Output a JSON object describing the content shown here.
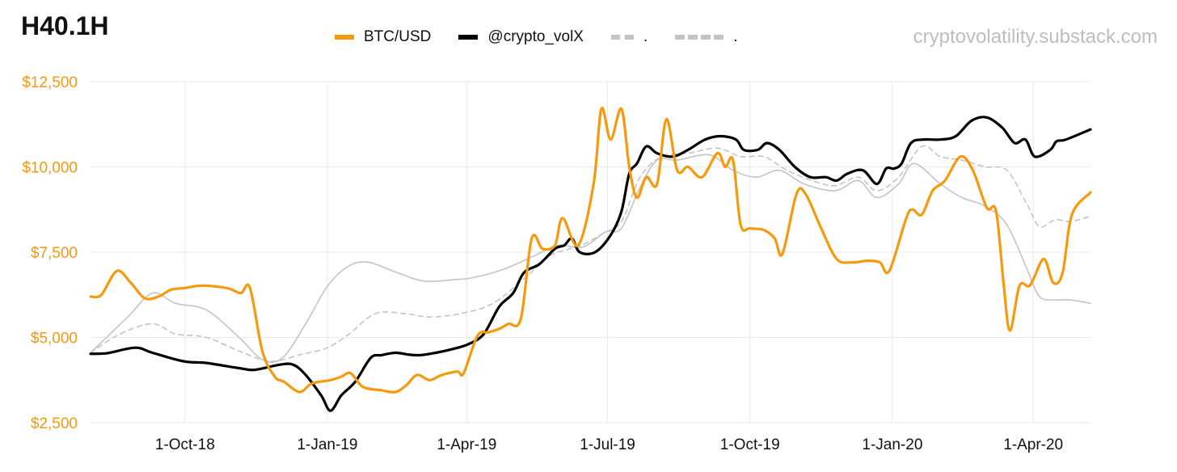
{
  "title": "H40.1H",
  "source": "cryptovolatility.substack.com",
  "colors": {
    "btc": "#F7990D",
    "vol": "#000000",
    "grey": "#c4c4c4",
    "grid": "#e8e8e8",
    "tick": "#F7990D"
  },
  "chart_data": {
    "type": "line",
    "title": "H40.1H",
    "xlabel": "",
    "ylabel": "",
    "ylim": [
      2500,
      12500
    ],
    "xlim": [
      "2018-08-01",
      "2020-05-08"
    ],
    "yticks": [
      2500,
      5000,
      7500,
      10000,
      12500
    ],
    "ytick_labels": [
      "$2,500",
      "$5,000",
      "$7,500",
      "$10,000",
      "$12,500"
    ],
    "xticks": [
      "2018-10-01",
      "2019-01-01",
      "2019-04-01",
      "2019-07-01",
      "2019-10-01",
      "2020-01-01",
      "2020-04-01"
    ],
    "xtick_labels": [
      "1-Oct-18",
      "1-Jan-19",
      "1-Apr-19",
      "1-Jul-19",
      "1-Oct-19",
      "1-Jan-20",
      "1-Apr-20"
    ],
    "grid": true,
    "legend_position": "top",
    "series": [
      {
        "name": "BTC/USD",
        "style": "solid",
        "color": "#F7990D",
        "points": [
          [
            "2018-08-01",
            6200
          ],
          [
            "2018-08-08",
            6250
          ],
          [
            "2018-08-18",
            6950
          ],
          [
            "2018-08-27",
            6600
          ],
          [
            "2018-09-05",
            6150
          ],
          [
            "2018-09-14",
            6200
          ],
          [
            "2018-09-22",
            6400
          ],
          [
            "2018-10-01",
            6450
          ],
          [
            "2018-10-12",
            6520
          ],
          [
            "2018-10-28",
            6450
          ],
          [
            "2018-11-06",
            6300
          ],
          [
            "2018-11-12",
            6450
          ],
          [
            "2018-11-20",
            4600
          ],
          [
            "2018-11-28",
            3850
          ],
          [
            "2018-12-04",
            3700
          ],
          [
            "2018-12-14",
            3400
          ],
          [
            "2018-12-22",
            3650
          ],
          [
            "2019-01-03",
            3750
          ],
          [
            "2019-01-10",
            3850
          ],
          [
            "2019-01-16",
            3950
          ],
          [
            "2019-01-24",
            3550
          ],
          [
            "2019-02-05",
            3450
          ],
          [
            "2019-02-14",
            3400
          ],
          [
            "2019-02-21",
            3600
          ],
          [
            "2019-02-28",
            3900
          ],
          [
            "2019-03-08",
            3750
          ],
          [
            "2019-03-16",
            3900
          ],
          [
            "2019-03-26",
            4000
          ],
          [
            "2019-03-30",
            3950
          ],
          [
            "2019-04-08",
            5050
          ],
          [
            "2019-04-15",
            5150
          ],
          [
            "2019-04-22",
            5250
          ],
          [
            "2019-04-28",
            5400
          ],
          [
            "2019-05-06",
            5550
          ],
          [
            "2019-05-13",
            7900
          ],
          [
            "2019-05-20",
            7600
          ],
          [
            "2019-05-28",
            7700
          ],
          [
            "2019-06-02",
            8500
          ],
          [
            "2019-06-12",
            7700
          ],
          [
            "2019-06-22",
            9500
          ],
          [
            "2019-06-27",
            11700
          ],
          [
            "2019-07-03",
            10800
          ],
          [
            "2019-07-10",
            11700
          ],
          [
            "2019-07-15",
            10000
          ],
          [
            "2019-07-20",
            9100
          ],
          [
            "2019-07-26",
            9700
          ],
          [
            "2019-08-02",
            9500
          ],
          [
            "2019-08-08",
            11400
          ],
          [
            "2019-08-15",
            9900
          ],
          [
            "2019-08-22",
            10000
          ],
          [
            "2019-08-31",
            9700
          ],
          [
            "2019-09-10",
            10400
          ],
          [
            "2019-09-15",
            10000
          ],
          [
            "2019-09-20",
            10200
          ],
          [
            "2019-09-25",
            8300
          ],
          [
            "2019-10-01",
            8200
          ],
          [
            "2019-10-10",
            8150
          ],
          [
            "2019-10-17",
            7900
          ],
          [
            "2019-10-22",
            7450
          ],
          [
            "2019-10-31",
            9200
          ],
          [
            "2019-11-06",
            9200
          ],
          [
            "2019-11-16",
            8200
          ],
          [
            "2019-11-26",
            7300
          ],
          [
            "2019-12-06",
            7200
          ],
          [
            "2019-12-16",
            7250
          ],
          [
            "2019-12-24",
            7200
          ],
          [
            "2019-12-30",
            6950
          ],
          [
            "2020-01-10",
            8500
          ],
          [
            "2020-01-14",
            8750
          ],
          [
            "2020-01-20",
            8600
          ],
          [
            "2020-01-27",
            9300
          ],
          [
            "2020-02-04",
            9600
          ],
          [
            "2020-02-14",
            10300
          ],
          [
            "2020-02-22",
            9900
          ],
          [
            "2020-03-02",
            8800
          ],
          [
            "2020-03-08",
            8700
          ],
          [
            "2020-03-13",
            6500
          ],
          [
            "2020-03-17",
            5200
          ],
          [
            "2020-03-23",
            6500
          ],
          [
            "2020-03-29",
            6500
          ],
          [
            "2020-04-01",
            6700
          ],
          [
            "2020-04-08",
            7300
          ],
          [
            "2020-04-14",
            6600
          ],
          [
            "2020-04-20",
            6900
          ],
          [
            "2020-04-26",
            8600
          ],
          [
            "2020-05-08",
            9250
          ]
        ]
      },
      {
        "name": "@crypto_volX",
        "style": "solid",
        "color": "#000000",
        "points": [
          [
            "2018-08-01",
            4520
          ],
          [
            "2018-08-12",
            4540
          ],
          [
            "2018-08-30",
            4700
          ],
          [
            "2018-09-10",
            4550
          ],
          [
            "2018-09-30",
            4300
          ],
          [
            "2018-10-15",
            4250
          ],
          [
            "2018-11-05",
            4100
          ],
          [
            "2018-11-15",
            4050
          ],
          [
            "2018-12-01",
            4200
          ],
          [
            "2018-12-10",
            4200
          ],
          [
            "2018-12-18",
            3900
          ],
          [
            "2018-12-28",
            3300
          ],
          [
            "2019-01-03",
            2850
          ],
          [
            "2019-01-10",
            3300
          ],
          [
            "2019-01-19",
            3700
          ],
          [
            "2019-01-29",
            4400
          ],
          [
            "2019-02-05",
            4480
          ],
          [
            "2019-02-14",
            4550
          ],
          [
            "2019-02-22",
            4500
          ],
          [
            "2019-03-02",
            4480
          ],
          [
            "2019-03-12",
            4550
          ],
          [
            "2019-03-22",
            4650
          ],
          [
            "2019-04-02",
            4800
          ],
          [
            "2019-04-12",
            5100
          ],
          [
            "2019-04-22",
            5900
          ],
          [
            "2019-05-01",
            6300
          ],
          [
            "2019-05-08",
            6900
          ],
          [
            "2019-05-18",
            7150
          ],
          [
            "2019-05-28",
            7600
          ],
          [
            "2019-06-03",
            7700
          ],
          [
            "2019-06-08",
            7900
          ],
          [
            "2019-06-13",
            7500
          ],
          [
            "2019-06-23",
            7500
          ],
          [
            "2019-07-03",
            8000
          ],
          [
            "2019-07-10",
            8700
          ],
          [
            "2019-07-15",
            9800
          ],
          [
            "2019-07-20",
            10100
          ],
          [
            "2019-07-26",
            10600
          ],
          [
            "2019-08-02",
            10400
          ],
          [
            "2019-08-12",
            10300
          ],
          [
            "2019-08-22",
            10500
          ],
          [
            "2019-09-02",
            10800
          ],
          [
            "2019-09-12",
            10900
          ],
          [
            "2019-09-22",
            10800
          ],
          [
            "2019-09-27",
            10500
          ],
          [
            "2019-10-06",
            10500
          ],
          [
            "2019-10-12",
            10700
          ],
          [
            "2019-10-20",
            10500
          ],
          [
            "2019-10-30",
            10000
          ],
          [
            "2019-11-09",
            9700
          ],
          [
            "2019-11-19",
            9700
          ],
          [
            "2019-11-26",
            9600
          ],
          [
            "2019-12-03",
            9800
          ],
          [
            "2019-12-13",
            9900
          ],
          [
            "2019-12-22",
            9500
          ],
          [
            "2019-12-28",
            9950
          ],
          [
            "2020-01-02",
            9950
          ],
          [
            "2020-01-07",
            10100
          ],
          [
            "2020-01-13",
            10700
          ],
          [
            "2020-01-21",
            10800
          ],
          [
            "2020-02-01",
            10800
          ],
          [
            "2020-02-11",
            10900
          ],
          [
            "2020-02-21",
            11350
          ],
          [
            "2020-03-02",
            11450
          ],
          [
            "2020-03-12",
            11150
          ],
          [
            "2020-03-20",
            10700
          ],
          [
            "2020-03-27",
            10800
          ],
          [
            "2020-04-02",
            10300
          ],
          [
            "2020-04-12",
            10500
          ],
          [
            "2020-04-16",
            10750
          ],
          [
            "2020-04-22",
            10800
          ],
          [
            "2020-05-08",
            11100
          ]
        ]
      },
      {
        "name": ".",
        "style": "dashed",
        "color": "#c4c4c4",
        "points": [
          [
            "2018-08-01",
            4550
          ],
          [
            "2018-08-20",
            5100
          ],
          [
            "2018-09-10",
            5400
          ],
          [
            "2018-09-25",
            5100
          ],
          [
            "2018-10-15",
            5000
          ],
          [
            "2018-11-05",
            4600
          ],
          [
            "2018-11-25",
            4300
          ],
          [
            "2018-12-15",
            4500
          ],
          [
            "2019-01-01",
            4700
          ],
          [
            "2019-01-15",
            5100
          ],
          [
            "2019-02-01",
            5700
          ],
          [
            "2019-02-20",
            5700
          ],
          [
            "2019-03-08",
            5600
          ],
          [
            "2019-03-28",
            5700
          ],
          [
            "2019-04-18",
            6000
          ],
          [
            "2019-05-10",
            6800
          ],
          [
            "2019-05-25",
            7400
          ],
          [
            "2019-06-14",
            7700
          ],
          [
            "2019-06-28",
            8050
          ],
          [
            "2019-07-10",
            8400
          ],
          [
            "2019-07-22",
            9700
          ],
          [
            "2019-08-05",
            10300
          ],
          [
            "2019-08-22",
            10400
          ],
          [
            "2019-09-10",
            10550
          ],
          [
            "2019-09-25",
            10300
          ],
          [
            "2019-10-10",
            10300
          ],
          [
            "2019-10-25",
            9900
          ],
          [
            "2019-11-10",
            9600
          ],
          [
            "2019-11-25",
            9450
          ],
          [
            "2019-12-10",
            9700
          ],
          [
            "2019-12-22",
            9300
          ],
          [
            "2020-01-05",
            9700
          ],
          [
            "2020-01-20",
            10600
          ],
          [
            "2020-02-01",
            10300
          ],
          [
            "2020-02-15",
            10200
          ],
          [
            "2020-03-01",
            10000
          ],
          [
            "2020-03-15",
            9900
          ],
          [
            "2020-03-28",
            8900
          ],
          [
            "2020-04-05",
            8250
          ],
          [
            "2020-04-15",
            8450
          ],
          [
            "2020-04-25",
            8400
          ],
          [
            "2020-05-08",
            8550
          ]
        ]
      },
      {
        "name": ".",
        "style": "solid-thin",
        "color": "#c4c4c4",
        "points": [
          [
            "2018-08-01",
            4550
          ],
          [
            "2018-08-25",
            5600
          ],
          [
            "2018-09-10",
            6300
          ],
          [
            "2018-09-25",
            6000
          ],
          [
            "2018-10-15",
            5800
          ],
          [
            "2018-11-05",
            5000
          ],
          [
            "2018-11-20",
            4350
          ],
          [
            "2018-12-03",
            4400
          ],
          [
            "2018-12-18",
            5400
          ],
          [
            "2019-01-01",
            6500
          ],
          [
            "2019-01-15",
            7100
          ],
          [
            "2019-01-28",
            7200
          ],
          [
            "2019-02-15",
            6900
          ],
          [
            "2019-03-05",
            6650
          ],
          [
            "2019-03-25",
            6700
          ],
          [
            "2019-04-05",
            6750
          ],
          [
            "2019-04-25",
            7000
          ],
          [
            "2019-05-15",
            7400
          ],
          [
            "2019-05-30",
            7700
          ],
          [
            "2019-06-15",
            7650
          ],
          [
            "2019-06-30",
            8100
          ],
          [
            "2019-07-10",
            8200
          ],
          [
            "2019-07-22",
            9400
          ],
          [
            "2019-08-02",
            10200
          ],
          [
            "2019-08-15",
            10200
          ],
          [
            "2019-09-05",
            10350
          ],
          [
            "2019-09-20",
            9900
          ],
          [
            "2019-10-05",
            9700
          ],
          [
            "2019-10-20",
            9900
          ],
          [
            "2019-11-05",
            9500
          ],
          [
            "2019-11-25",
            9300
          ],
          [
            "2019-12-10",
            9600
          ],
          [
            "2019-12-22",
            9100
          ],
          [
            "2020-01-05",
            9500
          ],
          [
            "2020-01-15",
            10100
          ],
          [
            "2020-02-01",
            9500
          ],
          [
            "2020-02-15",
            9100
          ],
          [
            "2020-03-01",
            8850
          ],
          [
            "2020-03-15",
            8300
          ],
          [
            "2020-03-28",
            7000
          ],
          [
            "2020-04-05",
            6200
          ],
          [
            "2020-04-15",
            6100
          ],
          [
            "2020-04-25",
            6100
          ],
          [
            "2020-05-08",
            6000
          ]
        ]
      }
    ]
  }
}
